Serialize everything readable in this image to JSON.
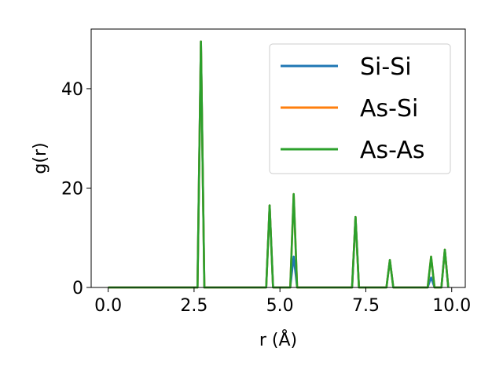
{
  "chart_data": {
    "type": "line",
    "title": "",
    "xlabel": "r (Å)",
    "ylabel": "g(r)",
    "xlim": [
      -0.495,
      10.395
    ],
    "ylim": [
      0,
      52
    ],
    "xticks": [
      0.0,
      2.5,
      5.0,
      7.5,
      10.0
    ],
    "xtick_labels": [
      "0.0",
      "2.5",
      "5.0",
      "7.5",
      "10.0"
    ],
    "yticks": [
      0,
      20,
      40
    ],
    "ytick_labels": [
      "0",
      "20",
      "40"
    ],
    "grid": false,
    "legend_position": "top-right",
    "series": [
      {
        "name": "Si-Si",
        "color": "#1f77b4",
        "x": [
          0.0,
          2.6,
          2.7,
          2.8,
          4.6,
          4.7,
          4.8,
          5.3,
          5.4,
          5.5,
          7.1,
          7.2,
          7.3,
          8.1,
          8.2,
          8.3,
          9.3,
          9.4,
          9.5,
          9.7,
          9.8,
          9.9
        ],
        "y": [
          0,
          0,
          49.5,
          0,
          0,
          16.5,
          0,
          0,
          6.2,
          0,
          0,
          14.2,
          0,
          0,
          5.5,
          0,
          0,
          2.0,
          0,
          0,
          7.6,
          0
        ]
      },
      {
        "name": "As-Si",
        "color": "#ff7f0e",
        "x": [
          0.0,
          2.6,
          2.7,
          2.8,
          4.6,
          4.7,
          4.8,
          5.3,
          5.4,
          5.5,
          7.1,
          7.2,
          7.3,
          8.1,
          8.2,
          8.3,
          9.3,
          9.4,
          9.5,
          9.7,
          9.8,
          9.9
        ],
        "y": [
          0,
          0,
          49.5,
          0,
          0,
          16.5,
          0,
          0,
          18.8,
          0,
          0,
          14.2,
          0,
          0,
          5.5,
          0,
          0,
          6.2,
          0,
          0,
          7.6,
          0
        ]
      },
      {
        "name": "As-As",
        "color": "#2ca02c",
        "x": [
          0.0,
          2.6,
          2.7,
          2.8,
          4.6,
          4.7,
          4.8,
          5.3,
          5.4,
          5.5,
          7.1,
          7.2,
          7.3,
          8.1,
          8.2,
          8.3,
          9.3,
          9.4,
          9.5,
          9.7,
          9.8,
          9.9
        ],
        "y": [
          0,
          0,
          49.5,
          0,
          0,
          16.5,
          0,
          0,
          18.8,
          0,
          0,
          14.2,
          0,
          0,
          5.5,
          0,
          0,
          6.2,
          0,
          0,
          7.6,
          0
        ]
      }
    ]
  }
}
